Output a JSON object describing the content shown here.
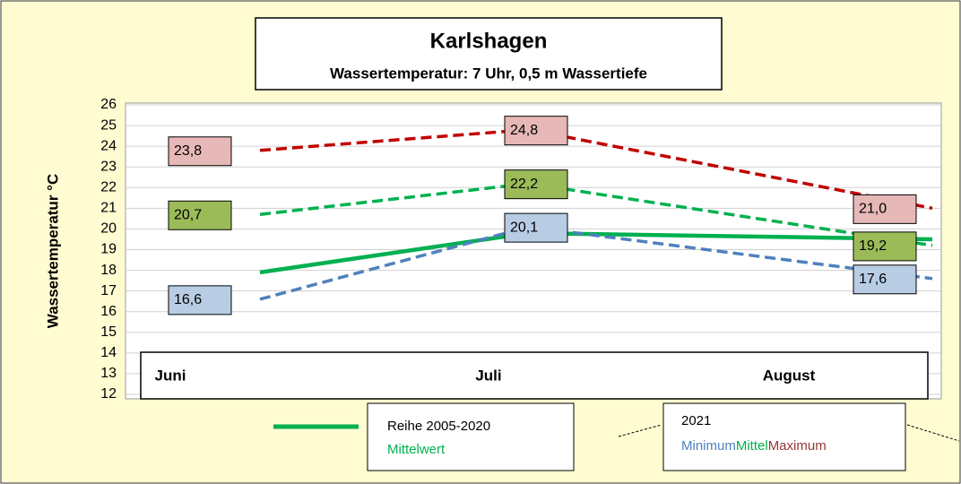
{
  "chart_data": {
    "type": "line",
    "title": "Karlshagen",
    "subtitle": "Wassertemperatur: 7 Uhr,  0,5 m Wassertiefe",
    "y_label": "Wassertemperatur °C",
    "categories": [
      "Juni",
      "Juli",
      "August"
    ],
    "ylim": [
      12,
      26
    ],
    "yticks": [
      12,
      13,
      14,
      15,
      16,
      17,
      18,
      19,
      20,
      21,
      22,
      23,
      24,
      25,
      26
    ],
    "grid": true,
    "legend_titles": [
      "Reihe 2005-2020",
      "2021"
    ],
    "series": [
      {
        "name": "Mittelwert",
        "color": "#00b050",
        "dashed": false,
        "values": [
          17.9,
          19.8,
          19.5
        ]
      },
      {
        "name": "Minimum",
        "color": "#4f81bd",
        "dashed": true,
        "label_color": "#b8cce4",
        "values": [
          16.6,
          20.1,
          17.6
        ],
        "value_labels": [
          "16,6",
          "20,1",
          "17,6"
        ]
      },
      {
        "name": "Mittel",
        "color": "#00b050",
        "dashed": true,
        "label_color": "#9bbb59",
        "values": [
          20.7,
          22.2,
          19.2
        ],
        "value_labels": [
          "20,7",
          "22,2",
          "19,2"
        ]
      },
      {
        "name": "Maximum",
        "color": "#c00000",
        "dashed": true,
        "label_color": "#e6b8b7",
        "values": [
          23.8,
          24.8,
          21.0
        ],
        "value_labels": [
          "23,8",
          "24,8",
          "21,0"
        ]
      }
    ]
  }
}
